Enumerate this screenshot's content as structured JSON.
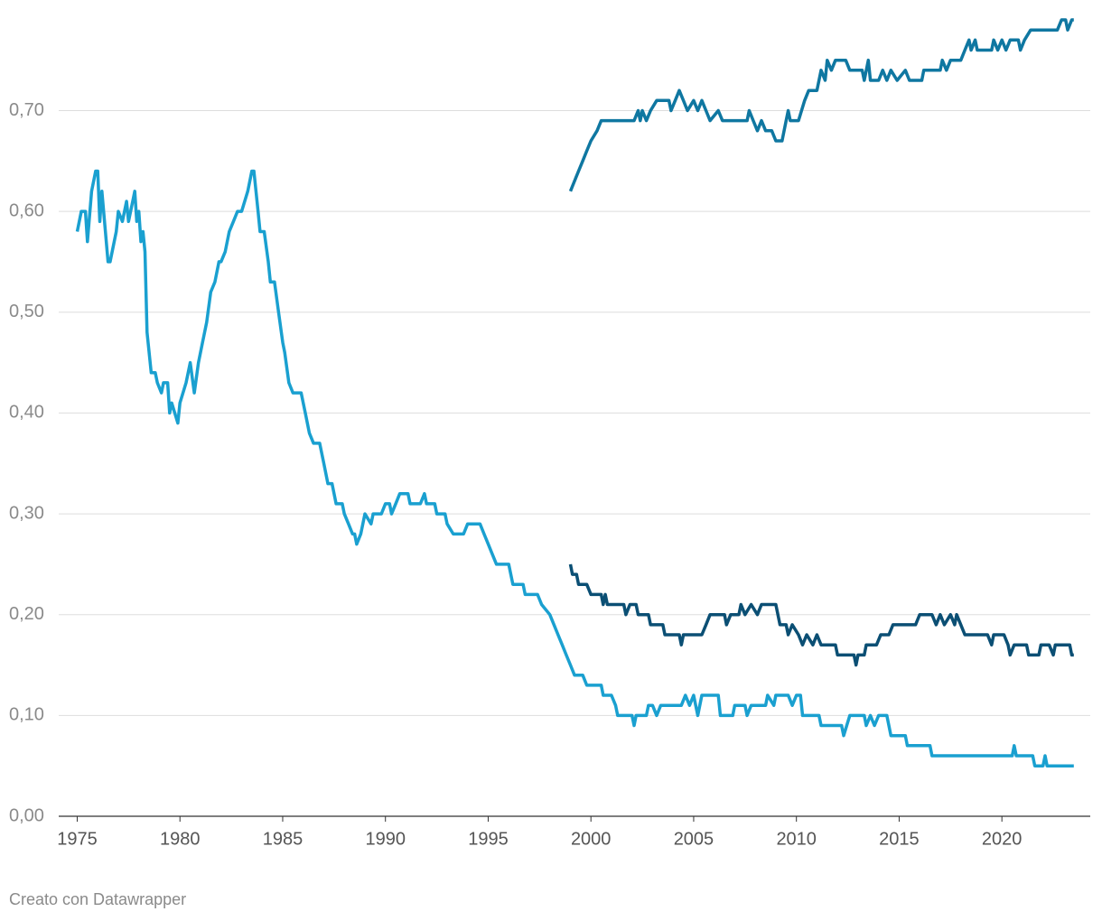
{
  "chart_data": {
    "type": "line",
    "footer": "Creato con Datawrapper",
    "xlim": [
      1974.1,
      2024.3
    ],
    "xticks": [
      1975,
      1980,
      1985,
      1990,
      1995,
      2000,
      2005,
      2010,
      2015,
      2020
    ],
    "ylim": [
      0,
      0.79
    ],
    "yticks": [
      {
        "value": 0,
        "label": "0,00"
      },
      {
        "value": 0.1,
        "label": "0,10"
      },
      {
        "value": 0.2,
        "label": "0,20"
      },
      {
        "value": 0.3,
        "label": "0,30"
      },
      {
        "value": 0.4,
        "label": "0,40"
      },
      {
        "value": 0.5,
        "label": "0,50"
      },
      {
        "value": 0.6,
        "label": "0,60"
      },
      {
        "value": 0.7,
        "label": "0,70"
      }
    ],
    "grid": true,
    "series": [
      {
        "color": "#1aa0d0",
        "x": [
          1975.0,
          1975.2,
          1975.4,
          1975.5,
          1975.7,
          1975.9,
          1976.0,
          1976.1,
          1976.2,
          1976.5,
          1976.6,
          1976.9,
          1977.0,
          1977.2,
          1977.4,
          1977.5,
          1977.8,
          1977.9,
          1978.0,
          1978.1,
          1978.2,
          1978.3,
          1978.4,
          1978.6,
          1978.8,
          1978.9,
          1979.1,
          1979.2,
          1979.4,
          1979.5,
          1979.6,
          1979.9,
          1980.0,
          1980.3,
          1980.5,
          1980.7,
          1980.9,
          1981.1,
          1981.3,
          1981.5,
          1981.7,
          1981.9,
          1982.0,
          1982.2,
          1982.4,
          1982.6,
          1982.8,
          1983.0,
          1983.3,
          1983.5,
          1983.6,
          1983.8,
          1983.9,
          1984.1,
          1984.3,
          1984.4,
          1984.6,
          1984.8,
          1985.0,
          1985.1,
          1985.3,
          1985.5,
          1985.9,
          1986.1,
          1986.3,
          1986.5,
          1986.8,
          1987.0,
          1987.2,
          1987.4,
          1987.6,
          1987.8,
          1987.9,
          1988.0,
          1988.2,
          1988.4,
          1988.5,
          1988.6,
          1988.8,
          1989.0,
          1989.3,
          1989.4,
          1989.8,
          1990.0,
          1990.2,
          1990.3,
          1990.5,
          1990.7,
          1991.1,
          1991.2,
          1991.7,
          1991.9,
          1992.0,
          1992.4,
          1992.5,
          1992.9,
          1993.0,
          1993.3,
          1993.8,
          1994.0,
          1994.6,
          1994.8,
          1995.0,
          1995.2,
          1995.4,
          1996.0,
          1996.2,
          1996.7,
          1996.8,
          1997.4,
          1997.6,
          1998.0,
          1998.2,
          1998.4,
          1998.6,
          1998.8,
          1999.0,
          1999.2,
          1999.6,
          1999.8,
          2000.5,
          2000.6,
          2001.0,
          2001.2,
          2001.3,
          2002.0,
          2002.1,
          2002.2,
          2002.7,
          2002.8,
          2003.0,
          2003.2,
          2003.4,
          2004.4,
          2004.6,
          2004.8,
          2005.0,
          2005.2,
          2005.4,
          2006.2,
          2006.3,
          2006.9,
          2007.0,
          2007.5,
          2007.6,
          2007.8,
          2008.5,
          2008.6,
          2008.9,
          2009.0,
          2009.6,
          2009.8,
          2010.0,
          2010.2,
          2010.3,
          2011.1,
          2011.2,
          2012.2,
          2012.3,
          2012.6,
          2013.3,
          2013.4,
          2013.6,
          2013.8,
          2014.0,
          2014.4,
          2014.6,
          2015.3,
          2015.4,
          2016.5,
          2016.6,
          2020.5,
          2020.6,
          2020.7,
          2021.5,
          2021.6,
          2022.0,
          2022.1,
          2022.2,
          2023.5
        ],
        "values": [
          0.58,
          0.6,
          0.6,
          0.57,
          0.62,
          0.64,
          0.64,
          0.59,
          0.62,
          0.55,
          0.55,
          0.58,
          0.6,
          0.59,
          0.61,
          0.59,
          0.62,
          0.59,
          0.6,
          0.57,
          0.58,
          0.56,
          0.48,
          0.44,
          0.44,
          0.43,
          0.42,
          0.43,
          0.43,
          0.4,
          0.41,
          0.39,
          0.41,
          0.43,
          0.45,
          0.42,
          0.45,
          0.47,
          0.49,
          0.52,
          0.53,
          0.55,
          0.55,
          0.56,
          0.58,
          0.59,
          0.6,
          0.6,
          0.62,
          0.64,
          0.64,
          0.6,
          0.58,
          0.58,
          0.55,
          0.53,
          0.53,
          0.5,
          0.47,
          0.46,
          0.43,
          0.42,
          0.42,
          0.4,
          0.38,
          0.37,
          0.37,
          0.35,
          0.33,
          0.33,
          0.31,
          0.31,
          0.31,
          0.3,
          0.29,
          0.28,
          0.28,
          0.27,
          0.28,
          0.3,
          0.29,
          0.3,
          0.3,
          0.31,
          0.31,
          0.3,
          0.31,
          0.32,
          0.32,
          0.31,
          0.31,
          0.32,
          0.31,
          0.31,
          0.3,
          0.3,
          0.29,
          0.28,
          0.28,
          0.29,
          0.29,
          0.28,
          0.27,
          0.26,
          0.25,
          0.25,
          0.23,
          0.23,
          0.22,
          0.22,
          0.21,
          0.2,
          0.19,
          0.18,
          0.17,
          0.16,
          0.15,
          0.14,
          0.14,
          0.13,
          0.13,
          0.12,
          0.12,
          0.11,
          0.1,
          0.1,
          0.09,
          0.1,
          0.1,
          0.11,
          0.11,
          0.1,
          0.11,
          0.11,
          0.12,
          0.11,
          0.12,
          0.1,
          0.12,
          0.12,
          0.1,
          0.1,
          0.11,
          0.11,
          0.1,
          0.11,
          0.11,
          0.12,
          0.11,
          0.12,
          0.12,
          0.11,
          0.12,
          0.12,
          0.1,
          0.1,
          0.09,
          0.09,
          0.08,
          0.1,
          0.1,
          0.09,
          0.1,
          0.09,
          0.1,
          0.1,
          0.08,
          0.08,
          0.07,
          0.07,
          0.06,
          0.06,
          0.07,
          0.06,
          0.06,
          0.05,
          0.05,
          0.06,
          0.05,
          0.05
        ]
      },
      {
        "color": "#0f77a1",
        "x": [
          1999.0,
          1999.2,
          1999.4,
          1999.6,
          1999.8,
          2000.0,
          2000.3,
          2000.5,
          2001.0,
          2002.1,
          2002.3,
          2002.4,
          2002.5,
          2002.7,
          2002.9,
          2003.2,
          2003.8,
          2003.9,
          2004.1,
          2004.3,
          2004.5,
          2004.7,
          2005.0,
          2005.2,
          2005.4,
          2005.6,
          2005.8,
          2006.2,
          2006.4,
          2007.6,
          2007.7,
          2007.9,
          2008.1,
          2008.3,
          2008.5,
          2008.8,
          2009.0,
          2009.3,
          2009.5,
          2009.6,
          2009.7,
          2010.1,
          2010.4,
          2010.6,
          2011.0,
          2011.1,
          2011.2,
          2011.4,
          2011.5,
          2011.7,
          2011.9,
          2012.4,
          2012.6,
          2013.2,
          2013.3,
          2013.5,
          2013.6,
          2014.0,
          2014.2,
          2014.4,
          2014.6,
          2014.9,
          2015.3,
          2015.5,
          2016.1,
          2016.2,
          2017.0,
          2017.1,
          2017.3,
          2017.5,
          2018.0,
          2018.2,
          2018.4,
          2018.5,
          2018.7,
          2018.8,
          2019.5,
          2019.6,
          2019.8,
          2020.0,
          2020.2,
          2020.4,
          2020.8,
          2020.9,
          2021.1,
          2021.4,
          2022.7,
          2022.9,
          2023.1,
          2023.2,
          2023.4,
          2023.5
        ],
        "values": [
          0.62,
          0.63,
          0.64,
          0.65,
          0.66,
          0.67,
          0.68,
          0.69,
          0.69,
          0.69,
          0.7,
          0.69,
          0.7,
          0.69,
          0.7,
          0.71,
          0.71,
          0.7,
          0.71,
          0.72,
          0.71,
          0.7,
          0.71,
          0.7,
          0.71,
          0.7,
          0.69,
          0.7,
          0.69,
          0.69,
          0.7,
          0.69,
          0.68,
          0.69,
          0.68,
          0.68,
          0.67,
          0.67,
          0.69,
          0.7,
          0.69,
          0.69,
          0.71,
          0.72,
          0.72,
          0.73,
          0.74,
          0.73,
          0.75,
          0.74,
          0.75,
          0.75,
          0.74,
          0.74,
          0.73,
          0.75,
          0.73,
          0.73,
          0.74,
          0.73,
          0.74,
          0.73,
          0.74,
          0.73,
          0.73,
          0.74,
          0.74,
          0.75,
          0.74,
          0.75,
          0.75,
          0.76,
          0.77,
          0.76,
          0.77,
          0.76,
          0.76,
          0.77,
          0.76,
          0.77,
          0.76,
          0.77,
          0.77,
          0.76,
          0.77,
          0.78,
          0.78,
          0.79,
          0.79,
          0.78,
          0.79,
          0.79
        ]
      },
      {
        "color": "#0b4f74",
        "x": [
          1999.0,
          1999.1,
          1999.3,
          1999.4,
          1999.8,
          2000.0,
          2000.5,
          2000.6,
          2000.7,
          2000.8,
          2001.6,
          2001.7,
          2001.9,
          2002.2,
          2002.3,
          2002.8,
          2002.9,
          2003.5,
          2003.6,
          2004.3,
          2004.4,
          2004.5,
          2005.4,
          2005.6,
          2005.8,
          2006.5,
          2006.6,
          2006.8,
          2007.2,
          2007.3,
          2007.5,
          2007.8,
          2008.1,
          2008.3,
          2009.0,
          2009.2,
          2009.5,
          2009.6,
          2009.8,
          2010.1,
          2010.3,
          2010.5,
          2010.8,
          2011.0,
          2011.2,
          2011.9,
          2012.0,
          2012.8,
          2012.9,
          2013.0,
          2013.3,
          2013.4,
          2013.9,
          2014.1,
          2014.5,
          2014.7,
          2015.8,
          2016.0,
          2016.6,
          2016.8,
          2017.0,
          2017.2,
          2017.5,
          2017.7,
          2017.8,
          2018.0,
          2018.2,
          2019.3,
          2019.5,
          2019.6,
          2020.1,
          2020.3,
          2020.4,
          2020.6,
          2021.2,
          2021.3,
          2021.8,
          2021.9,
          2022.3,
          2022.5,
          2022.6,
          2023.3,
          2023.4,
          2023.5
        ],
        "values": [
          0.25,
          0.24,
          0.24,
          0.23,
          0.23,
          0.22,
          0.22,
          0.21,
          0.22,
          0.21,
          0.21,
          0.2,
          0.21,
          0.21,
          0.2,
          0.2,
          0.19,
          0.19,
          0.18,
          0.18,
          0.17,
          0.18,
          0.18,
          0.19,
          0.2,
          0.2,
          0.19,
          0.2,
          0.2,
          0.21,
          0.2,
          0.21,
          0.2,
          0.21,
          0.21,
          0.19,
          0.19,
          0.18,
          0.19,
          0.18,
          0.17,
          0.18,
          0.17,
          0.18,
          0.17,
          0.17,
          0.16,
          0.16,
          0.15,
          0.16,
          0.16,
          0.17,
          0.17,
          0.18,
          0.18,
          0.19,
          0.19,
          0.2,
          0.2,
          0.19,
          0.2,
          0.19,
          0.2,
          0.19,
          0.2,
          0.19,
          0.18,
          0.18,
          0.17,
          0.18,
          0.18,
          0.17,
          0.16,
          0.17,
          0.17,
          0.16,
          0.16,
          0.17,
          0.17,
          0.16,
          0.17,
          0.17,
          0.16,
          0.16
        ]
      }
    ]
  }
}
